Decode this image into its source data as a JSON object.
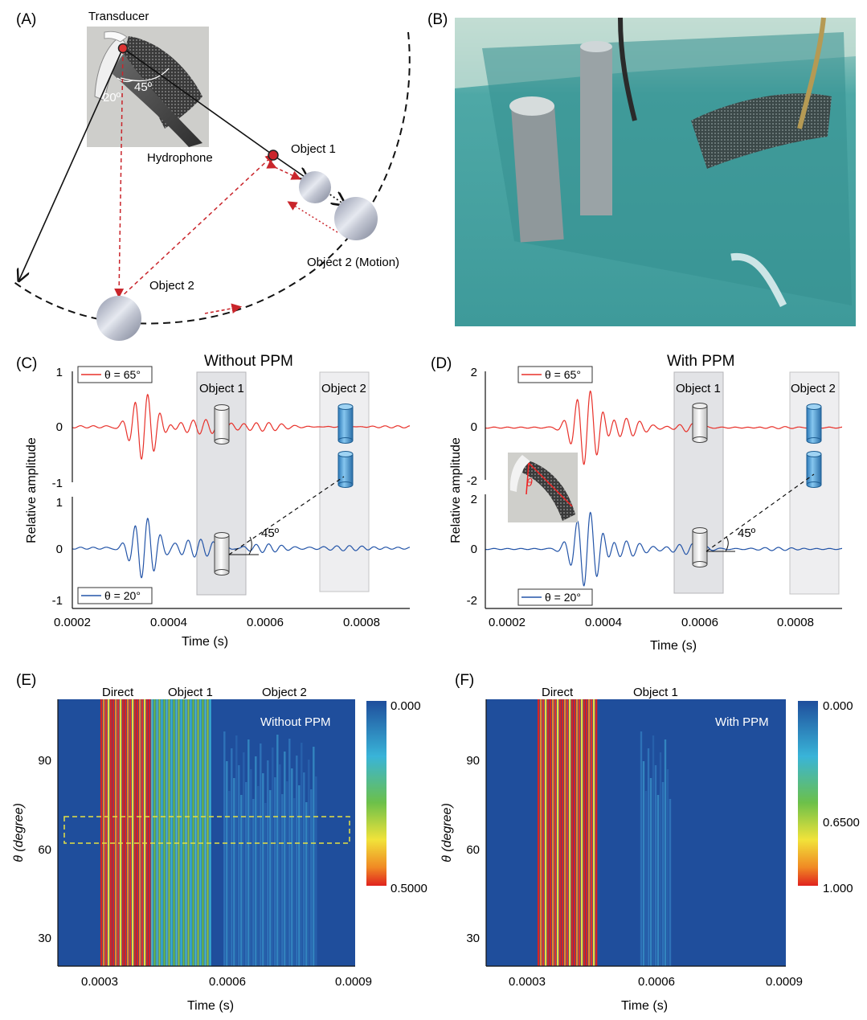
{
  "panels": {
    "A": {
      "label": "(A)",
      "transducer": "Transducer",
      "hydrophone": "Hydrophone",
      "angle_20": "20º",
      "angle_45": "45º",
      "object1": "Object 1",
      "object2": "Object 2",
      "object2_motion": "Object 2 (Motion)"
    },
    "B": {
      "label": "(B)"
    },
    "C": {
      "label": "(C)",
      "title": "Without PPM",
      "legend_top": "θ = 65°",
      "legend_bottom": "θ = 20°",
      "ylabel": "Relative amplitude",
      "xlabel": "Time (s)",
      "object1": "Object 1",
      "object2": "Object 2",
      "angle": "45º",
      "yticks_top": [
        "1",
        "0",
        "-1"
      ],
      "yticks_bottom": [
        "1",
        "0",
        "-1"
      ],
      "xticks": [
        "0.0002",
        "0.0004",
        "0.0006",
        "0.0008"
      ]
    },
    "D": {
      "label": "(D)",
      "title": "With PPM",
      "legend_top": "θ = 65°",
      "legend_bottom": "θ = 20°",
      "ylabel": "Relative amplitude",
      "xlabel": "Time (s)",
      "object1": "Object 1",
      "object2": "Object 2",
      "angle": "45º",
      "inset_theta": "θ",
      "yticks_top": [
        "2",
        "0",
        "-2"
      ],
      "yticks_bottom": [
        "2",
        "0",
        "-2"
      ],
      "xticks": [
        "0.0002",
        "0.0004",
        "0.0006",
        "0.0008"
      ]
    },
    "E": {
      "label": "(E)",
      "inner_title": "Without PPM",
      "top_labels": [
        "Direct",
        "Object 1",
        "Object 2"
      ],
      "ylabel": "θ (degree)",
      "xlabel": "Time (s)",
      "yticks": [
        "90",
        "60",
        "30"
      ],
      "xticks": [
        "0.0003",
        "0.0006",
        "0.0009"
      ],
      "colorbar": [
        "0.000",
        "0.5000"
      ]
    },
    "F": {
      "label": "(F)",
      "inner_title": "With PPM",
      "top_labels": [
        "Direct",
        "Object 1"
      ],
      "ylabel": "θ (degree)",
      "xlabel": "Time (s)",
      "yticks": [
        "90",
        "60",
        "30"
      ],
      "xticks": [
        "0.0003",
        "0.0006",
        "0.0009"
      ],
      "colorbar": [
        "0.000",
        "0.6500",
        "1.000"
      ]
    }
  },
  "chart_data": [
    {
      "type": "line",
      "panel": "C",
      "title": "Without PPM",
      "xlabel": "Time (s)",
      "ylabel": "Relative amplitude",
      "xlim": [
        0.0002,
        0.0009
      ],
      "series": [
        {
          "name": "θ = 65°",
          "color": "#e8312a",
          "ylim": [
            -1,
            1
          ],
          "peak_amplitude": 0.62,
          "peak_time": 0.00035
        },
        {
          "name": "θ = 20°",
          "color": "#2455a8",
          "ylim": [
            -1,
            1
          ],
          "peak_amplitude": 0.62,
          "peak_time": 0.00035
        }
      ],
      "regions": [
        {
          "label": "Object 1",
          "x": [
            0.00046,
            0.00056
          ]
        },
        {
          "label": "Object 2",
          "x": [
            0.00072,
            0.00082
          ]
        }
      ]
    },
    {
      "type": "line",
      "panel": "D",
      "title": "With PPM",
      "xlabel": "Time (s)",
      "ylabel": "Relative amplitude",
      "xlim": [
        0.0002,
        0.0009
      ],
      "series": [
        {
          "name": "θ = 65°",
          "color": "#e8312a",
          "ylim": [
            -2,
            2
          ],
          "peak_amplitude": 1.45,
          "peak_time": 0.0004
        },
        {
          "name": "θ = 20°",
          "color": "#2455a8",
          "ylim": [
            -2,
            2
          ],
          "peak_amplitude": 1.45,
          "peak_time": 0.0004
        }
      ],
      "regions": [
        {
          "label": "Object 1",
          "x": [
            0.00055,
            0.00065
          ]
        },
        {
          "label": "Object 2",
          "x": [
            0.00079,
            0.00089
          ]
        }
      ]
    },
    {
      "type": "heatmap",
      "panel": "E",
      "xlabel": "Time (s)",
      "ylabel": "θ (degree)",
      "xlim": [
        0.0002,
        0.0009
      ],
      "ylim": [
        20,
        110
      ],
      "colorbar": [
        0.0,
        0.5
      ],
      "bands": [
        {
          "label": "Direct",
          "x": [
            0.0003,
            0.00042
          ],
          "level": "high"
        },
        {
          "label": "Object 1",
          "x": [
            0.00042,
            0.00056
          ],
          "level": "medium"
        },
        {
          "label": "Object 2",
          "x": [
            0.00059,
            0.00081
          ],
          "level": "low"
        }
      ]
    },
    {
      "type": "heatmap",
      "panel": "F",
      "xlabel": "Time (s)",
      "ylabel": "θ (degree)",
      "xlim": [
        0.0002,
        0.0009
      ],
      "ylim": [
        20,
        110
      ],
      "colorbar": [
        0.0,
        0.65,
        1.0
      ],
      "bands": [
        {
          "label": "Direct",
          "x": [
            0.00032,
            0.00046
          ],
          "level": "high"
        },
        {
          "label": "Object 1",
          "x": [
            0.00056,
            0.00063
          ],
          "level": "low"
        }
      ]
    }
  ],
  "colors": {
    "red": "#e8312a",
    "blue": "#2455a8",
    "heat_bg": "#1f4e9c",
    "dashed_red": "#c9252b",
    "region_gray": "#e2e3e6",
    "water": "#4fa6a8"
  }
}
